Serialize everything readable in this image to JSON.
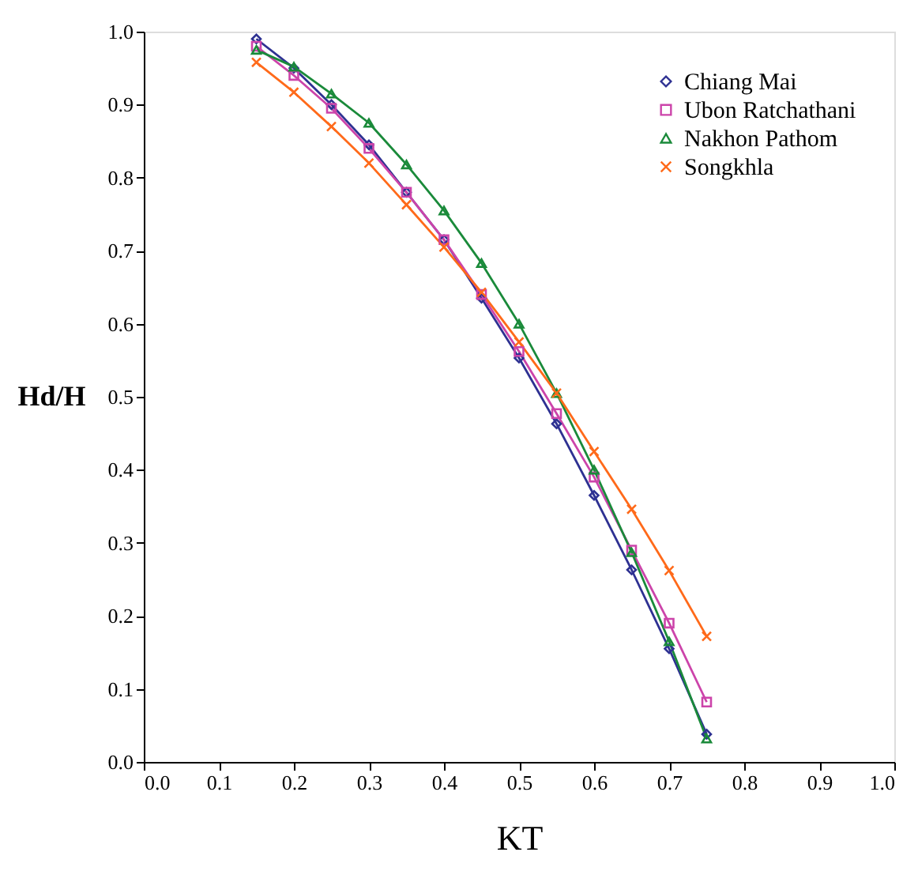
{
  "chart_data": {
    "type": "line",
    "xlabel": "KT",
    "ylabel": "Hd/H",
    "x": [
      0.15,
      0.2,
      0.25,
      0.3,
      0.35,
      0.4,
      0.45,
      0.5,
      0.55,
      0.6,
      0.65,
      0.7,
      0.75
    ],
    "series": [
      {
        "name": "Chiang Mai",
        "color": "#2e3192",
        "marker": "diamond",
        "values": [
          0.99,
          0.95,
          0.9,
          0.845,
          0.78,
          0.715,
          0.635,
          0.553,
          0.463,
          0.365,
          0.263,
          0.155,
          0.038
        ]
      },
      {
        "name": "Ubon Ratchathani",
        "color": "#cc44aa",
        "marker": "square",
        "values": [
          0.98,
          0.94,
          0.895,
          0.84,
          0.78,
          0.715,
          0.64,
          0.562,
          0.477,
          0.39,
          0.29,
          0.19,
          0.082
        ]
      },
      {
        "name": "Nakhon Pathom",
        "color": "#1a8a3a",
        "marker": "triangle",
        "values": [
          0.975,
          0.952,
          0.915,
          0.875,
          0.818,
          0.755,
          0.683,
          0.6,
          0.505,
          0.4,
          0.287,
          0.165,
          0.032
        ]
      },
      {
        "name": "Songkhla",
        "color": "#ff6a1a",
        "marker": "cross",
        "values": [
          0.958,
          0.917,
          0.87,
          0.82,
          0.763,
          0.705,
          0.643,
          0.575,
          0.505,
          0.425,
          0.346,
          0.262,
          0.172
        ]
      }
    ],
    "xlim": [
      0,
      1
    ],
    "xticks": [
      {
        "value": 0,
        "label": "0.0"
      },
      0.1,
      0.2,
      0.3,
      0.4,
      0.5,
      0.6,
      0.7,
      0.8,
      0.9,
      {
        "value": 1,
        "label": "1.0"
      }
    ],
    "ylim": [
      0,
      1
    ],
    "yticks": [
      {
        "value": 0,
        "label": "0.0"
      },
      0.1,
      0.2,
      0.3,
      0.4,
      0.5,
      0.6,
      0.7,
      0.8,
      0.9,
      {
        "value": 1,
        "label": "1.0"
      }
    ],
    "grid": false,
    "legend": "top right",
    "line_style": "solid"
  }
}
